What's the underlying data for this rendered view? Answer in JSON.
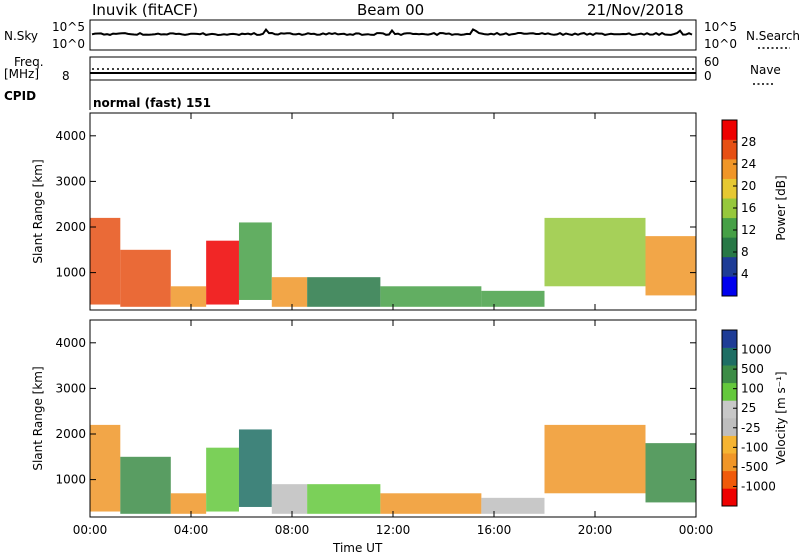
{
  "header": {
    "station": "Inuvik (fitACF)",
    "beam": "Beam 00",
    "date": "21/Nov/2018"
  },
  "summary": {
    "nsky_label": "N.Sky",
    "nsky_ticks": [
      "10^5",
      "10^0"
    ],
    "nsearch_label": "N.Search",
    "nsearch_ticks": [
      "10^5",
      "10^0"
    ],
    "freq_label_top": "Freq.",
    "freq_label_bottom": "[MHz]",
    "freq_ticks": [
      "8"
    ],
    "nave_label": "Nave",
    "nave_ticks": [
      "60",
      "0"
    ],
    "cpid_label": "CPID",
    "cpid_text": "normal (fast) 151"
  },
  "colors": {
    "power_scale": [
      "#0000ee",
      "#1e3c96",
      "#287846",
      "#46a046",
      "#96c83c",
      "#e6c832",
      "#f09628",
      "#e65014",
      "#ee0000"
    ],
    "velocity_scale": [
      "#ee0000",
      "#f05a0a",
      "#f09628",
      "#f5b432",
      "#bebebe",
      "#c8c8c8",
      "#64c83c",
      "#3c8c46",
      "#1e6e64",
      "#1e3c96"
    ]
  },
  "chart_data": [
    {
      "type": "heatmap",
      "name": "power-panel",
      "ylabel": "Slant Range [km]",
      "yticks": [
        "4000",
        "3000",
        "2000",
        "1000"
      ],
      "ylim": [
        180,
        4500
      ],
      "xticks": [
        "00:00",
        "04:00",
        "08:00",
        "12:00",
        "16:00",
        "20:00",
        "00:00"
      ],
      "xlim": [
        0,
        24
      ],
      "colorbar": {
        "label": "Power [dB]",
        "ticks": [
          "28",
          "24",
          "20",
          "16",
          "12",
          "8",
          "4"
        ],
        "range": [
          0,
          32
        ]
      },
      "regions": [
        {
          "t0": 0.0,
          "t1": 1.2,
          "r0": 300,
          "r1": 2200,
          "value": 28
        },
        {
          "t0": 1.2,
          "t1": 3.2,
          "r0": 250,
          "r1": 1500,
          "value": 26
        },
        {
          "t0": 3.2,
          "t1": 4.6,
          "r0": 250,
          "r1": 700,
          "value": 24
        },
        {
          "t0": 4.6,
          "t1": 5.9,
          "r0": 300,
          "r1": 1700,
          "value": 30
        },
        {
          "t0": 5.9,
          "t1": 7.2,
          "r0": 400,
          "r1": 2100,
          "value": 12
        },
        {
          "t0": 7.2,
          "t1": 8.6,
          "r0": 250,
          "r1": 900,
          "value": 24
        },
        {
          "t0": 8.6,
          "t1": 11.5,
          "r0": 250,
          "r1": 900,
          "value": 10
        },
        {
          "t0": 11.5,
          "t1": 15.5,
          "r0": 250,
          "r1": 700,
          "value": 12
        },
        {
          "t0": 15.5,
          "t1": 18.0,
          "r0": 250,
          "r1": 600,
          "value": 14
        },
        {
          "t0": 18.0,
          "t1": 22.0,
          "r0": 700,
          "r1": 2200,
          "value": 16
        },
        {
          "t0": 22.0,
          "t1": 24.0,
          "r0": 500,
          "r1": 1800,
          "value": 22
        }
      ]
    },
    {
      "type": "heatmap",
      "name": "velocity-panel",
      "ylabel": "Slant Range [km]",
      "yticks": [
        "4000",
        "3000",
        "2000",
        "1000"
      ],
      "ylim": [
        180,
        4500
      ],
      "xticks": [
        "00:00",
        "04:00",
        "08:00",
        "12:00",
        "16:00",
        "20:00",
        "00:00"
      ],
      "xlim": [
        0,
        24
      ],
      "xlabel": "Time UT",
      "colorbar": {
        "label": "Velocity [m s⁻¹]",
        "ticks": [
          "1000",
          "500",
          "100",
          "25",
          "-25",
          "-100",
          "-500",
          "-1000"
        ]
      },
      "regions": [
        {
          "t0": 0.0,
          "t1": 1.2,
          "r0": 300,
          "r1": 2200,
          "value": -100
        },
        {
          "t0": 1.2,
          "t1": 3.2,
          "r0": 250,
          "r1": 1500,
          "value": 500
        },
        {
          "t0": 3.2,
          "t1": 4.6,
          "r0": 250,
          "r1": 700,
          "value": -100
        },
        {
          "t0": 4.6,
          "t1": 5.9,
          "r0": 300,
          "r1": 1700,
          "value": 100
        },
        {
          "t0": 5.9,
          "t1": 7.2,
          "r0": 400,
          "r1": 2100,
          "value": 1000
        },
        {
          "t0": 7.2,
          "t1": 8.6,
          "r0": 250,
          "r1": 900,
          "value": 0
        },
        {
          "t0": 8.6,
          "t1": 11.5,
          "r0": 250,
          "r1": 900,
          "value": 100
        },
        {
          "t0": 11.5,
          "t1": 15.5,
          "r0": 250,
          "r1": 700,
          "value": -100
        },
        {
          "t0": 15.5,
          "t1": 18.0,
          "r0": 250,
          "r1": 600,
          "value": 0
        },
        {
          "t0": 18.0,
          "t1": 22.0,
          "r0": 700,
          "r1": 2200,
          "value": -100
        },
        {
          "t0": 22.0,
          "t1": 24.0,
          "r0": 500,
          "r1": 1800,
          "value": 500
        }
      ]
    }
  ]
}
